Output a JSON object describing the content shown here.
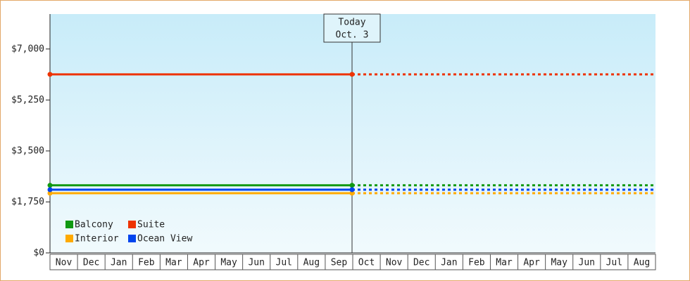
{
  "chart_data": {
    "type": "line",
    "annotation": [
      "Today",
      "Oct. 3"
    ],
    "months": [
      "Nov",
      "Dec",
      "Jan",
      "Feb",
      "Mar",
      "Apr",
      "May",
      "Jun",
      "Jul",
      "Aug",
      "Sep",
      "Oct",
      "Nov",
      "Dec",
      "Jan",
      "Feb",
      "Mar",
      "Apr",
      "May",
      "Jun",
      "Jul",
      "Aug"
    ],
    "series": [
      {
        "name": "Balcony",
        "color": "#119911",
        "values": [
          2320,
          2320
        ]
      },
      {
        "name": "Suite",
        "color": "#ee3300",
        "values": [
          6130,
          6130
        ]
      },
      {
        "name": "Interior",
        "color": "#ffaa00",
        "values": [
          2050,
          2050
        ]
      },
      {
        "name": "Ocean View",
        "color": "#0044ee",
        "values": [
          2170,
          2170
        ]
      }
    ],
    "ylim": [
      0,
      8200
    ],
    "yticks": [
      {
        "value": 0,
        "label": "$0"
      },
      {
        "value": 1750,
        "label": "$1,750"
      },
      {
        "value": 3500,
        "label": "$3,500"
      },
      {
        "value": 5250,
        "label": "$5,250"
      },
      {
        "value": 7000,
        "label": "$7,000"
      }
    ]
  }
}
